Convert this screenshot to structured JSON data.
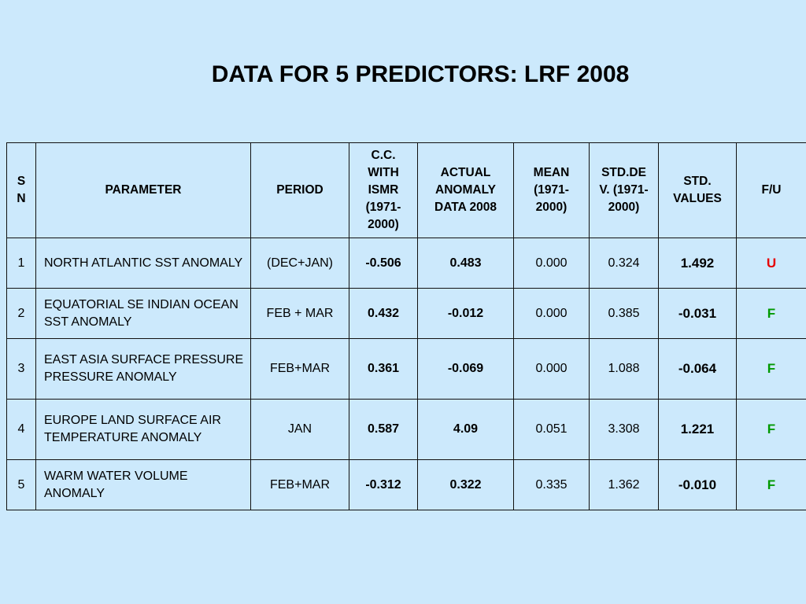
{
  "title": "DATA FOR 5 PREDICTORS: LRF 2008",
  "colors": {
    "U": "#e60000",
    "F": "#009900"
  },
  "headers": {
    "sn": "S N",
    "parameter": "PARAMETER",
    "period": "PERIOD",
    "cc": "C.C. WITH ISMR (1971-2000)",
    "actual": "ACTUAL ANOMALY DATA 2008",
    "mean": "MEAN (1971-2000)",
    "stddev": "STD.DEV. (1971-2000)",
    "stdvalues": "STD. VALUES",
    "fu": "F/U"
  },
  "rows": [
    {
      "sn": "1",
      "parameter": "NORTH ATLANTIC SST ANOMALY",
      "period": "(DEC+JAN)",
      "cc": "-0.506",
      "actual": "0.483",
      "mean": "0.000",
      "stddev": "0.324",
      "stdvalue": "1.492",
      "fu": "U"
    },
    {
      "sn": "2",
      "parameter": "EQUATORIAL SE INDIAN OCEAN SST ANOMALY",
      "period": "FEB + MAR",
      "cc": "0.432",
      "actual": "-0.012",
      "mean": "0.000",
      "stddev": "0.385",
      "stdvalue": "-0.031",
      "fu": "F"
    },
    {
      "sn": "3",
      "parameter": "EAST ASIA SURFACE PRESSURE PRESSURE ANOMALY",
      "period": "FEB+MAR",
      "cc": "0.361",
      "actual": "-0.069",
      "mean": "0.000",
      "stddev": "1.088",
      "stdvalue": "-0.064",
      "fu": "F"
    },
    {
      "sn": "4",
      "parameter": "EUROPE LAND SURFACE AIR TEMPERATURE ANOMALY",
      "period": "JAN",
      "cc": "0.587",
      "actual": "4.09",
      "mean": "0.051",
      "stddev": "3.308",
      "stdvalue": "1.221",
      "fu": "F"
    },
    {
      "sn": "5",
      "parameter": "WARM WATER VOLUME ANOMALY",
      "period": "FEB+MAR",
      "cc": "-0.312",
      "actual": "0.322",
      "mean": "0.335",
      "stddev": "1.362",
      "stdvalue": "-0.010",
      "fu": "F"
    }
  ]
}
